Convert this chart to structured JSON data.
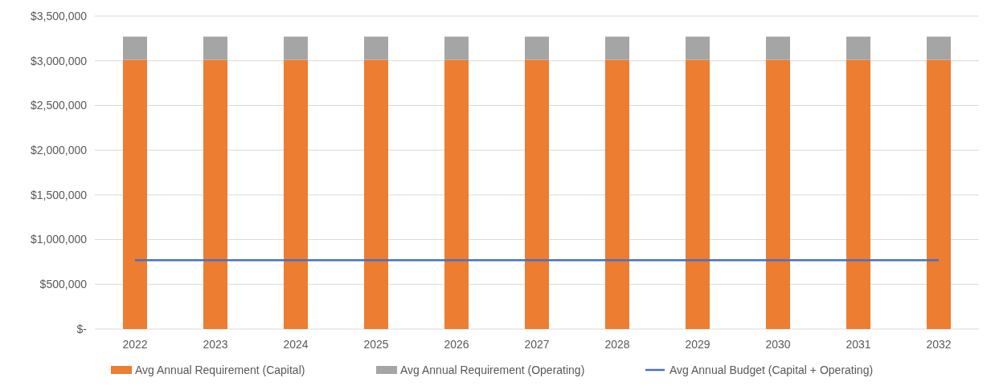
{
  "chart_data": {
    "type": "bar",
    "stacked": true,
    "categories": [
      "2022",
      "2023",
      "2024",
      "2025",
      "2026",
      "2027",
      "2028",
      "2029",
      "2030",
      "2031",
      "2032"
    ],
    "series": [
      {
        "name": "Avg Annual Requirement (Capital)",
        "color": "#ed7d31",
        "values": [
          3010000,
          3010000,
          3010000,
          3010000,
          3010000,
          3010000,
          3010000,
          3010000,
          3010000,
          3010000,
          3010000
        ]
      },
      {
        "name": "Avg Annual Requirement (Operating)",
        "color": "#a5a5a5",
        "values": [
          260000,
          260000,
          260000,
          260000,
          260000,
          260000,
          260000,
          260000,
          260000,
          260000,
          260000
        ]
      },
      {
        "name": "Avg Annual Budget (Capital + Operating)",
        "type": "line",
        "color": "#4472c4",
        "values": [
          770000,
          770000,
          770000,
          770000,
          770000,
          770000,
          770000,
          770000,
          770000,
          770000,
          770000
        ]
      }
    ],
    "ylim": [
      0,
      3500000
    ],
    "yticks": [
      {
        "value": 0,
        "label": "$-"
      },
      {
        "value": 500000,
        "label": "$500,000"
      },
      {
        "value": 1000000,
        "label": "$1,000,000"
      },
      {
        "value": 1500000,
        "label": "$1,500,000"
      },
      {
        "value": 2000000,
        "label": "$2,000,000"
      },
      {
        "value": 2500000,
        "label": "$2,500,000"
      },
      {
        "value": 3000000,
        "label": "$3,000,000"
      },
      {
        "value": 3500000,
        "label": "$3,500,000"
      }
    ],
    "grid": "y",
    "legend": "bottom",
    "marker": "none",
    "line_style": "solid"
  }
}
